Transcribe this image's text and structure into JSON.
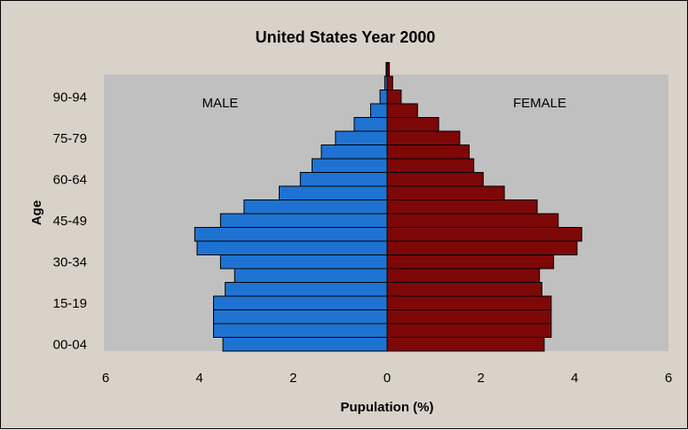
{
  "chart_data": {
    "type": "bar",
    "orientation": "horizontal",
    "layout": "population-pyramid",
    "title": "United States Year 2000",
    "xlabel": "Pupulation (%)",
    "ylabel": "Age",
    "xlim": [
      -6,
      6
    ],
    "xticks": [
      -6,
      -4,
      -2,
      0,
      2,
      4,
      6
    ],
    "xtick_labels": [
      "6",
      "4",
      "2",
      "0",
      "2",
      "4",
      "6"
    ],
    "annotations": [
      "MALE",
      "FEMALE"
    ],
    "grid": false,
    "legend": "none",
    "categories": [
      "00-04",
      "05-09",
      "10-14",
      "15-19",
      "20-24",
      "25-29",
      "30-34",
      "35-39",
      "40-44",
      "45-49",
      "50-54",
      "55-59",
      "60-64",
      "65-69",
      "70-74",
      "75-79",
      "80-84",
      "85-89",
      "90-94",
      "95-99",
      "100+"
    ],
    "visible_category_labels": [
      "00-04",
      "15-19",
      "30-34",
      "45-49",
      "60-64",
      "75-79",
      "90-94"
    ],
    "series": [
      {
        "values": [
          -3.5,
          -3.7,
          -3.7,
          -3.7,
          -3.45,
          -3.25,
          -3.55,
          -4.05,
          -4.1,
          -3.55,
          -3.05,
          -2.3,
          -1.85,
          -1.6,
          -1.4,
          -1.1,
          -0.7,
          -0.35,
          -0.15,
          -0.05,
          -0.02
        ],
        "color": "#1e73d2"
      },
      {
        "values": [
          3.35,
          3.5,
          3.5,
          3.5,
          3.3,
          3.25,
          3.55,
          4.05,
          4.15,
          3.65,
          3.2,
          2.5,
          2.05,
          1.85,
          1.75,
          1.55,
          1.1,
          0.65,
          0.3,
          0.12,
          0.05
        ],
        "color": "#7e0707"
      }
    ],
    "plot_background": "#c0c0c0",
    "frame_background": "#d9d2c8"
  }
}
